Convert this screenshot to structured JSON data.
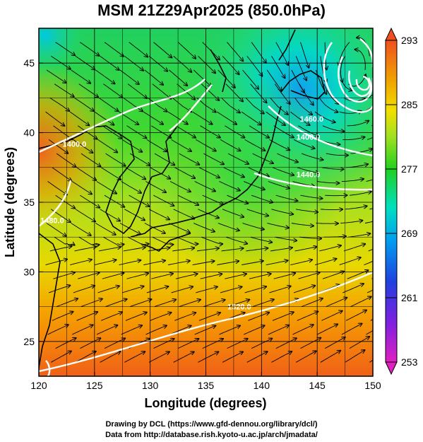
{
  "title": "MSM 21Z29Apr2025 (850.0hPa)",
  "xlabel": "Longitude (degrees)",
  "ylabel": "Latitude  (degrees)",
  "credits": [
    "Drawing by DCL (https://www.gfd-dennou.org/library/dcl/)",
    "Data from http://database.rish.kyoto-u.ac.jp/arch/jmadata/"
  ],
  "chart_data": {
    "type": "heatmap",
    "xlim": [
      120,
      150
    ],
    "ylim": [
      22.5,
      47.5
    ],
    "x_ticks": [
      "120",
      "125",
      "130",
      "135",
      "140",
      "145",
      "150"
    ],
    "y_ticks": [
      "25",
      "30",
      "35",
      "40",
      "45"
    ],
    "grid": true,
    "colorbar": {
      "min": 253,
      "max": 293,
      "ticks": [
        "293",
        "285",
        "277",
        "269",
        "261",
        "253"
      ],
      "colors": [
        "#e020c0",
        "#8020e0",
        "#2040e0",
        "#00a0f0",
        "#00e0c0",
        "#20d020",
        "#a0e020",
        "#f0e000",
        "#f0a000",
        "#f05020"
      ]
    },
    "contour_labels": [
      {
        "text": "1400.0",
        "lon": 123.2,
        "lat": 39.0
      },
      {
        "text": "1480.0",
        "lon": 121.2,
        "lat": 33.5
      },
      {
        "text": "1460.0",
        "lon": 144.5,
        "lat": 40.8
      },
      {
        "text": "1400.0",
        "lon": 144.2,
        "lat": 39.5
      },
      {
        "text": "1440.0",
        "lon": 144.2,
        "lat": 36.8
      },
      {
        "text": "1520.0",
        "lon": 138.0,
        "lat": 27.3
      }
    ]
  }
}
